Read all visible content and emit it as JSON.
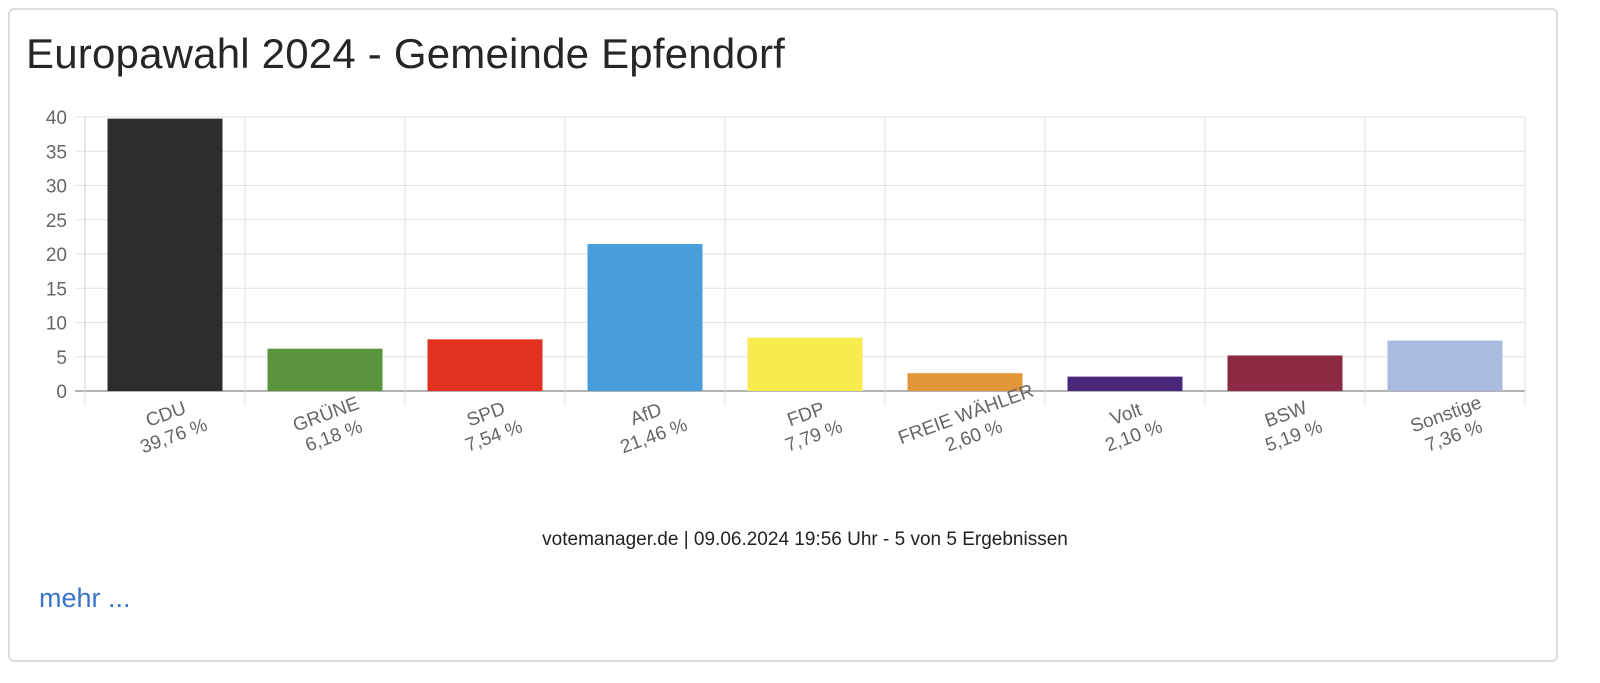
{
  "title": "Europawahl 2024 - Gemeinde Epfendorf",
  "footer_text": "votemanager.de | 09.06.2024 19:56 Uhr - 5 von 5 Ergebnissen",
  "more_link": "mehr ...",
  "chart_data": {
    "type": "bar",
    "title": "Europawahl 2024 - Gemeinde Epfendorf",
    "xlabel": "",
    "ylabel": "",
    "ylim": [
      0,
      40
    ],
    "y_ticks": [
      0,
      5,
      10,
      15,
      20,
      25,
      30,
      35,
      40
    ],
    "grid": true,
    "categories": [
      "CDU",
      "GRÜNE",
      "SPD",
      "AfD",
      "FDP",
      "FREIE WÄHLER",
      "Volt",
      "BSW",
      "Sonstige"
    ],
    "values": [
      39.76,
      6.18,
      7.54,
      21.46,
      7.79,
      2.6,
      2.1,
      5.19,
      7.36
    ],
    "value_labels": [
      "39,76 %",
      "6,18 %",
      "7,54 %",
      "21,46 %",
      "7,79 %",
      "2,60 %",
      "2,10 %",
      "5,19 %",
      "7,36 %"
    ],
    "colors": [
      "#2d2d2d",
      "#5a953d",
      "#e2321f",
      "#489ddb",
      "#f8eb4f",
      "#e39637",
      "#4a2778",
      "#8e2943",
      "#abbbe0"
    ]
  }
}
